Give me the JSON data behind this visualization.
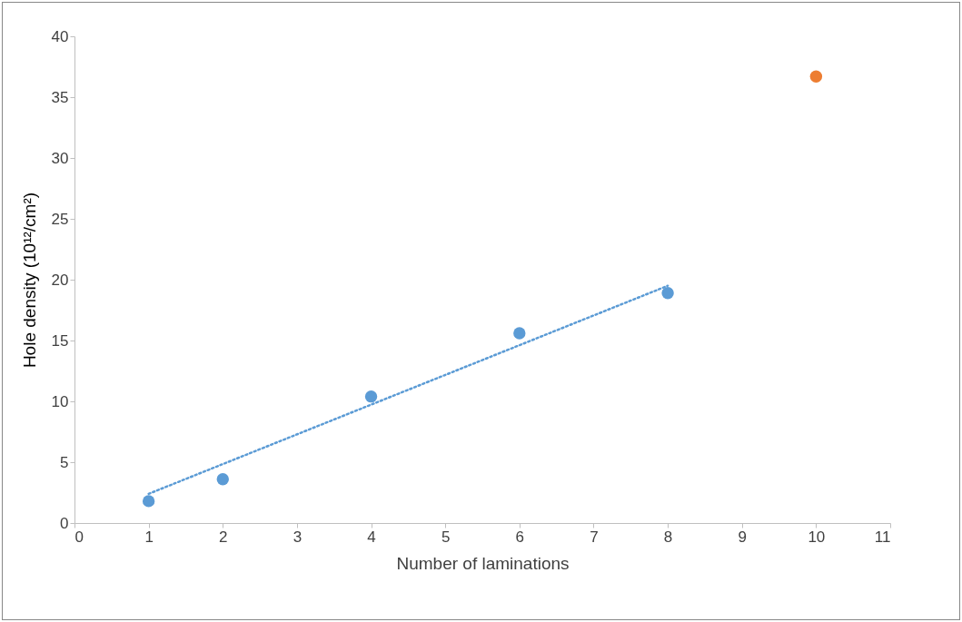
{
  "chart_data": {
    "type": "scatter",
    "xlabel": "Number of laminations",
    "ylabel": "Hole density (10¹²/cm²)",
    "xlim": [
      0,
      11
    ],
    "ylim": [
      0,
      40
    ],
    "xticks": [
      0,
      1,
      2,
      3,
      4,
      5,
      6,
      7,
      8,
      9,
      10,
      11
    ],
    "yticks": [
      0,
      5,
      10,
      15,
      20,
      25,
      30,
      35,
      40
    ],
    "grid": false,
    "marker": "circle",
    "series": [
      {
        "type": "line",
        "color": "#5b9bd5",
        "line_style": "dotted",
        "marker": "none",
        "x": [
          1,
          8
        ],
        "values": [
          2.4,
          19.5
        ]
      },
      {
        "color": "#5b9bd5",
        "x": [
          1,
          2,
          4,
          6,
          8
        ],
        "values": [
          1.8,
          3.6,
          10.4,
          15.6,
          18.9
        ]
      },
      {
        "color": "#ed7d31",
        "x": [
          10
        ],
        "values": [
          36.7
        ]
      }
    ]
  }
}
